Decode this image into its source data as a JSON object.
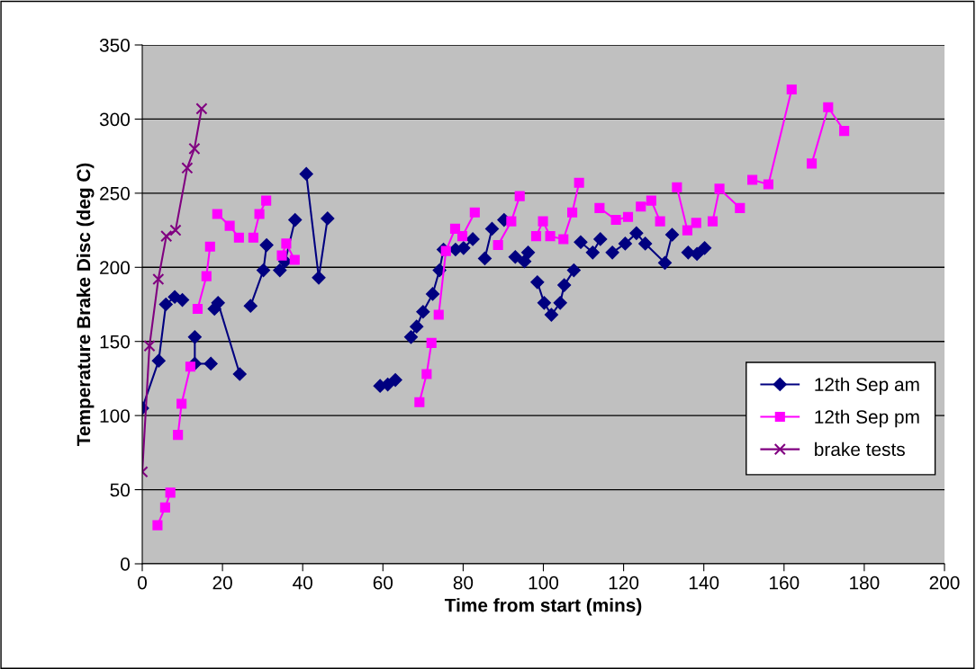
{
  "chart_data": {
    "type": "line",
    "xlabel": "Time from start (mins)",
    "ylabel": "Temperature Brake Disc (deg C)",
    "xlim": [
      0,
      200
    ],
    "xticks": [
      0,
      20,
      40,
      60,
      80,
      100,
      120,
      140,
      160,
      180,
      200
    ],
    "ylim": [
      0,
      350
    ],
    "yticks": [
      0,
      50,
      100,
      150,
      200,
      250,
      300,
      350
    ],
    "grid": "y",
    "legend": "right",
    "series": [
      {
        "name": "12th Sep am",
        "color": "#000080",
        "marker": "diamond",
        "x": [
          0,
          4.1,
          5.9,
          8.1,
          10,
          null,
          13.1,
          13.1,
          17.1,
          null,
          18,
          18.9,
          24.3,
          null,
          27,
          30.2,
          31,
          null,
          34.3,
          35.6,
          38.1,
          null,
          40.9,
          44,
          46.2,
          null,
          59.3,
          null,
          61.2,
          null,
          63.1,
          null,
          67,
          68.4,
          70,
          72.4,
          74.1,
          75.1,
          78.1,
          80.1,
          82.4,
          null,
          85.4,
          87.2,
          null,
          90.2,
          null,
          93,
          95.3,
          96.2,
          null,
          98.5,
          100.2,
          102,
          104.2,
          105.2,
          107.6,
          null,
          109.3,
          112.3,
          114.2,
          null,
          117.2,
          120.4,
          123.2,
          125.4,
          130.3,
          132.1,
          null,
          136.1,
          138.3,
          140.2
        ],
        "values": [
          105,
          137,
          175,
          180,
          178,
          null,
          153,
          135,
          135,
          null,
          172,
          176,
          128,
          null,
          174,
          198,
          215,
          null,
          198,
          204,
          232,
          null,
          263,
          193,
          233,
          null,
          120,
          null,
          121,
          null,
          124,
          null,
          153,
          160,
          170,
          182,
          198,
          212,
          212,
          213,
          219,
          null,
          206,
          226,
          null,
          232,
          null,
          207,
          204,
          210,
          null,
          190,
          176,
          168,
          176,
          188,
          198,
          null,
          217,
          210,
          219,
          null,
          210,
          216,
          223,
          216,
          203,
          222,
          null,
          210,
          209,
          213
        ]
      },
      {
        "name": "12th Sep pm",
        "color": "#ff00ff",
        "marker": "square",
        "x": [
          3.8,
          5.7,
          7,
          null,
          8.9,
          9.8,
          12,
          null,
          13.8,
          16,
          16.9,
          null,
          18.7,
          21.8,
          24.1,
          null,
          27.7,
          29.2,
          30.9,
          null,
          34.8,
          35.9,
          38,
          null,
          69.1,
          70.9,
          72.1,
          null,
          73.9,
          75.7,
          78,
          79.8,
          82.9,
          null,
          88.7,
          92,
          94.1,
          null,
          98.2,
          99.9,
          101.7,
          105,
          107.2,
          108.9,
          null,
          114,
          118.1,
          121.1,
          null,
          124.3,
          126.9,
          129.1,
          null,
          133.3,
          135.9,
          138.1,
          null,
          142.2,
          143.9,
          149,
          null,
          152.1,
          156.1,
          161.9,
          null,
          166.9,
          171,
          175
        ],
        "values": [
          26,
          38,
          48,
          null,
          87,
          108,
          133,
          null,
          172,
          194,
          214,
          null,
          236,
          228,
          220,
          null,
          220,
          236,
          245,
          null,
          208,
          216,
          205,
          null,
          109,
          128,
          149,
          null,
          168,
          211,
          226,
          221,
          237,
          null,
          215,
          231,
          248,
          null,
          221,
          231,
          221,
          219,
          237,
          257,
          null,
          240,
          232,
          234,
          null,
          241,
          245,
          231,
          null,
          254,
          225,
          230,
          null,
          231,
          253,
          240,
          null,
          259,
          256,
          320,
          null,
          270,
          308,
          292
        ]
      },
      {
        "name": "brake tests",
        "color": "#800080",
        "marker": "cross",
        "x": [
          0,
          1.8,
          4,
          6,
          8.3,
          11.2,
          13,
          14.8
        ],
        "values": [
          62,
          147,
          192,
          221,
          225,
          267,
          280,
          307
        ]
      }
    ]
  }
}
